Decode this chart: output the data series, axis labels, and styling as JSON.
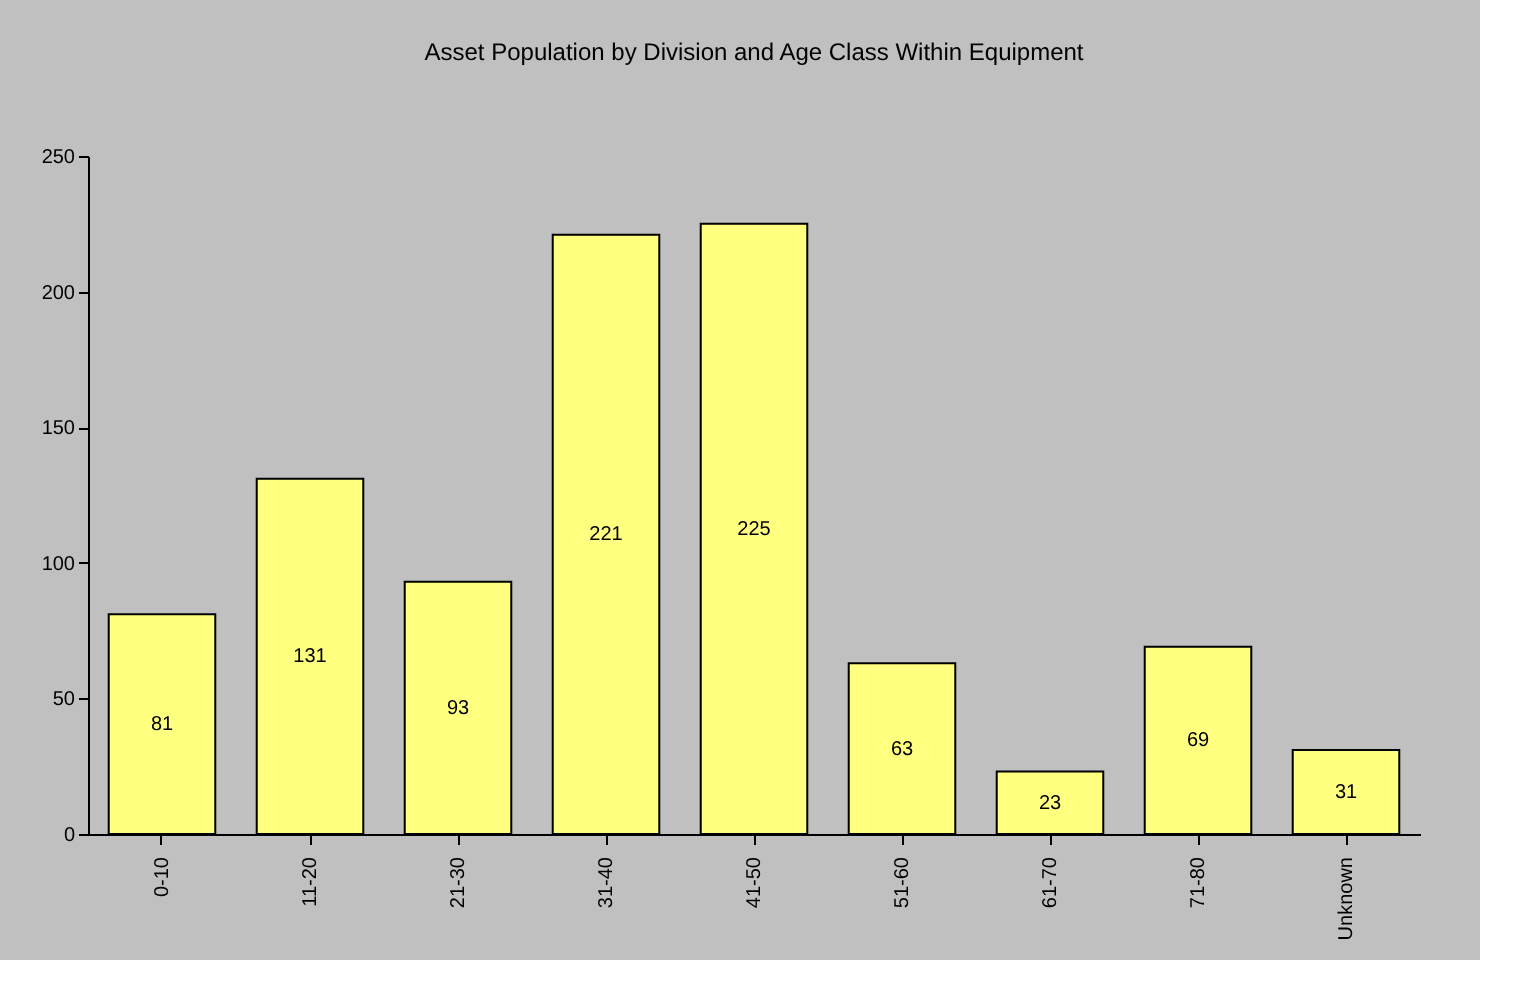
{
  "chart_data": {
    "type": "bar",
    "title": "Asset Population by Division and Age Class Within Equipment",
    "categories": [
      "0-10",
      "11-20",
      "21-30",
      "31-40",
      "41-50",
      "51-60",
      "61-70",
      "71-80",
      "Unknown"
    ],
    "values": [
      81,
      131,
      93,
      221,
      225,
      63,
      23,
      69,
      31
    ],
    "color": "#ffff80",
    "ylim": [
      0,
      250
    ],
    "yticks": [
      0,
      50,
      100,
      150,
      200,
      250
    ],
    "grid": false,
    "data_labels": true
  }
}
